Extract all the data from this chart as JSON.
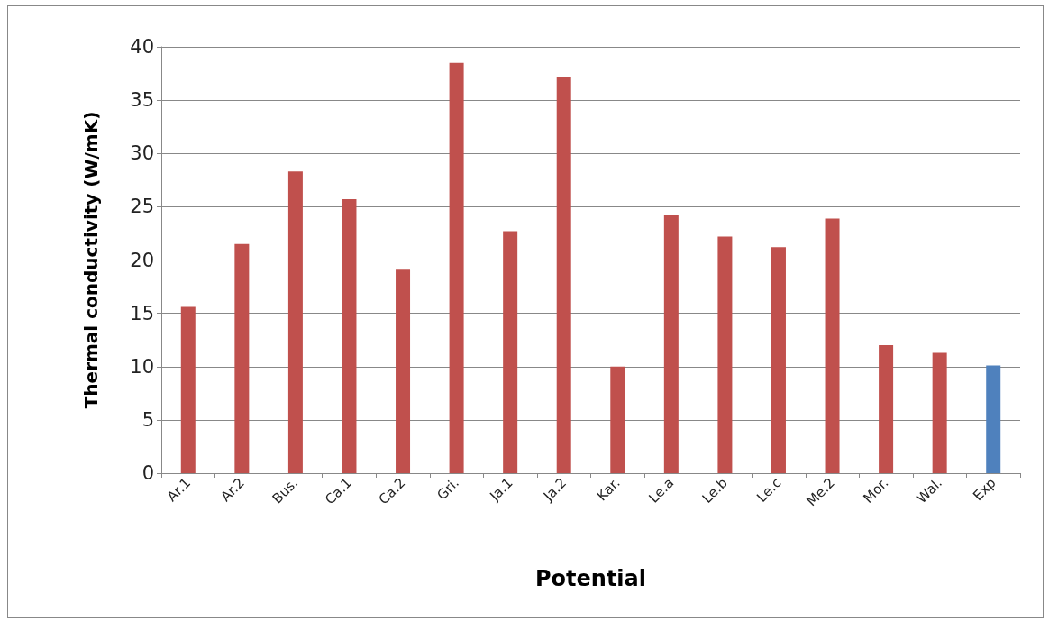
{
  "chart_data": {
    "type": "bar",
    "xlabel": "Potential",
    "ylabel": "Thermal conductivity (W/mK)",
    "categories": [
      "Ar.1",
      "Ar.2",
      "Bus.",
      "Ca.1",
      "Ca.2",
      "Gri.",
      "Ja.1",
      "Ja.2",
      "Kar.",
      "Le.a",
      "Le.b",
      "Le.c",
      "Me.2",
      "Mor.",
      "Wal.",
      "Exp"
    ],
    "values": [
      15.6,
      21.5,
      28.3,
      25.7,
      19.1,
      38.5,
      22.7,
      37.2,
      10.0,
      24.2,
      22.2,
      21.2,
      23.9,
      12.0,
      11.3,
      10.1
    ],
    "colors": [
      "#c0504d",
      "#c0504d",
      "#c0504d",
      "#c0504d",
      "#c0504d",
      "#c0504d",
      "#c0504d",
      "#c0504d",
      "#c0504d",
      "#c0504d",
      "#c0504d",
      "#c0504d",
      "#c0504d",
      "#c0504d",
      "#c0504d",
      "#4f81bd"
    ],
    "ylim": [
      0,
      40
    ],
    "yticks": [
      0,
      5,
      10,
      15,
      20,
      25,
      30,
      35,
      40
    ],
    "grid": "y"
  }
}
